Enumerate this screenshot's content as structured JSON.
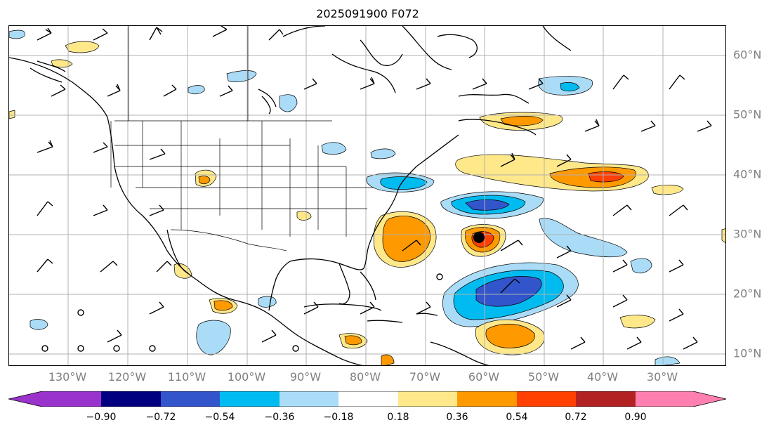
{
  "title": "2025091900 F072",
  "lon_labels": [
    "130°W",
    "120°W",
    "110°W",
    "100°W",
    "90°W",
    "80°W",
    "70°W",
    "60°W",
    "50°W",
    "40°W",
    "30°W"
  ],
  "lat_labels": [
    "60°N",
    "50°N",
    "40°N",
    "30°N",
    "20°N",
    "10°N"
  ],
  "colorbar": {
    "ticks": [
      "−0.90",
      "−0.72",
      "−0.54",
      "−0.36",
      "−0.18",
      "0.18",
      "0.36",
      "0.54",
      "0.72",
      "0.90"
    ],
    "colors": [
      "#9933cc",
      "#000080",
      "#3355cc",
      "#00bbf0",
      "#aadcf8",
      "#ffffff",
      "#ffe88a",
      "#ff9900",
      "#ff4000",
      "#b22222",
      "#ff80b0"
    ]
  },
  "map": {
    "extent_lon": [
      -141,
      -20
    ],
    "extent_lat": [
      8,
      65
    ],
    "storm_marker_icon": "storm-center-icon",
    "storm_marker_lonlat": [
      -60.3,
      29.5
    ]
  }
}
